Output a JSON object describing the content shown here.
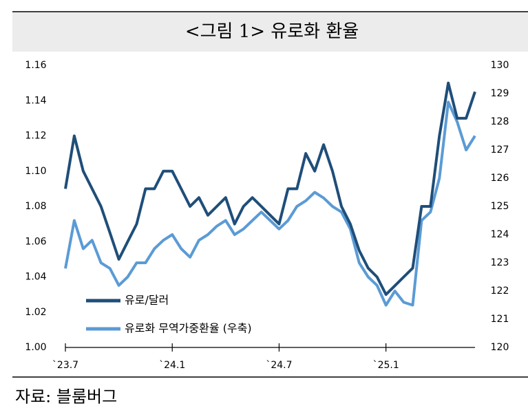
{
  "chart_data": {
    "type": "line",
    "title": "<그림 1> 유로화 환율",
    "source": "자료: 블룸버그",
    "categories": [
      "`23.7",
      null,
      null,
      null,
      null,
      null,
      null,
      null,
      null,
      null,
      null,
      null,
      "`24.1",
      null,
      null,
      null,
      null,
      null,
      null,
      null,
      null,
      null,
      null,
      null,
      "`24.7",
      null,
      null,
      null,
      null,
      null,
      null,
      null,
      null,
      null,
      null,
      null,
      "`25.1",
      null,
      null,
      null,
      null,
      null,
      null,
      null,
      null,
      null,
      null
    ],
    "series": [
      {
        "name": "유로/달러",
        "color": "#1f4e79",
        "axis": "y",
        "values": [
          1.09,
          1.12,
          1.1,
          1.09,
          1.08,
          1.065,
          1.05,
          1.06,
          1.07,
          1.09,
          1.09,
          1.1,
          1.1,
          1.09,
          1.08,
          1.085,
          1.075,
          1.08,
          1.085,
          1.07,
          1.08,
          1.085,
          1.08,
          1.075,
          1.07,
          1.09,
          1.09,
          1.11,
          1.1,
          1.115,
          1.1,
          1.08,
          1.07,
          1.055,
          1.045,
          1.04,
          1.03,
          1.035,
          1.04,
          1.045,
          1.08,
          1.08,
          1.12,
          1.15,
          1.13,
          1.13,
          1.145
        ]
      },
      {
        "name": "유로화 무역가중환율 (우축)",
        "color": "#5b9bd5",
        "axis": "y2",
        "values": [
          122.8,
          124.5,
          123.5,
          123.8,
          123,
          122.8,
          122.2,
          122.5,
          123,
          123,
          123.5,
          123.8,
          124,
          123.5,
          123.2,
          123.8,
          124,
          124.3,
          124.5,
          124,
          124.2,
          124.5,
          124.8,
          124.5,
          124.2,
          124.5,
          125,
          125.2,
          125.5,
          125.3,
          125,
          124.8,
          124.2,
          123,
          122.5,
          122.2,
          121.5,
          122,
          121.6,
          121.5,
          124.5,
          124.8,
          126,
          128.7,
          128,
          127,
          127.5
        ]
      }
    ],
    "ylim": [
      1.0,
      1.16
    ],
    "yticks": [
      {
        "value": 1.0,
        "label": "1.00"
      },
      1.02,
      1.04,
      1.06,
      1.08,
      {
        "value": 1.1,
        "label": "1.10"
      },
      1.12,
      1.14,
      1.16
    ],
    "y2lim": [
      120,
      130
    ],
    "y2ticks": [
      120,
      121,
      122,
      123,
      124,
      125,
      126,
      127,
      128,
      129,
      130
    ]
  }
}
